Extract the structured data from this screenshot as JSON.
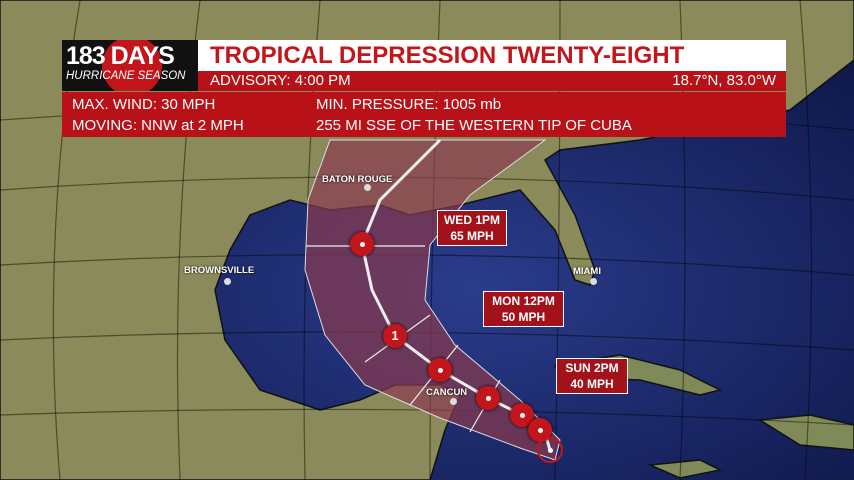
{
  "logo": {
    "days": "183 DAYS",
    "subtitle": "HURRICANE SEASON"
  },
  "header": {
    "title": "TROPICAL DEPRESSION TWENTY-EIGHT",
    "advisory": "ADVISORY: 4:00 PM",
    "position": "18.7°N, 83.0°W",
    "max_wind": "MAX. WIND: 30 MPH",
    "min_pressure": "MIN. PRESSURE: 1005 mb",
    "moving": "MOVING: NNW at 2 MPH",
    "location": "255 MI SSE OF THE WESTERN TIP OF CUBA"
  },
  "forecast_labels": [
    {
      "day": "WED 1PM",
      "wind": "65 MPH"
    },
    {
      "day": "MON 12PM",
      "wind": "50 MPH"
    },
    {
      "day": "SUN 2PM",
      "wind": "40 MPH"
    }
  ],
  "cities": [
    "BATON ROUGE",
    "BROWNSVILLE",
    "MIAMI",
    "CANCUN"
  ],
  "track_markers": [
    {
      "type": "hurricane",
      "label": ""
    },
    {
      "type": "hurricane",
      "label": "1"
    },
    {
      "type": "tropical-storm",
      "label": ""
    },
    {
      "type": "tropical-storm",
      "label": ""
    },
    {
      "type": "tropical-storm",
      "label": ""
    },
    {
      "type": "tropical-storm",
      "label": ""
    },
    {
      "type": "depression",
      "label": ""
    }
  ],
  "colors": {
    "brand_red": "#b81118",
    "ocean": "#1c2a6e",
    "land": "#7d8a55",
    "cone": "#7a3a4a"
  }
}
